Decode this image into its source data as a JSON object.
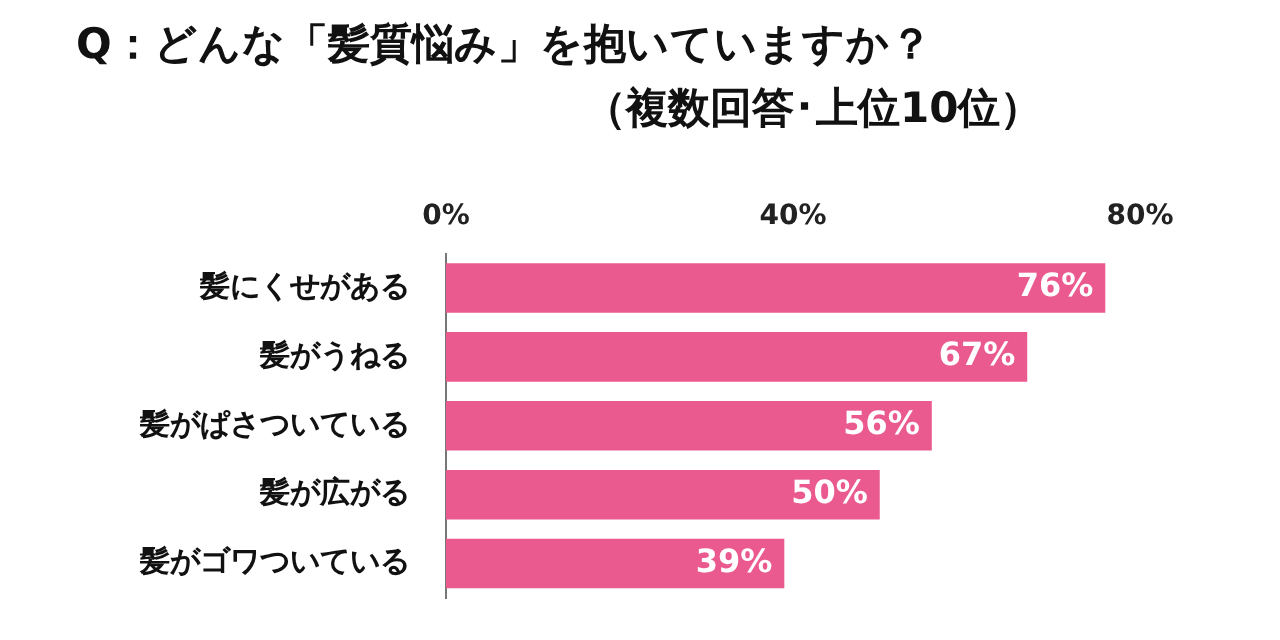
{
  "chart_data": {
    "type": "bar",
    "orientation": "horizontal",
    "title": "Q：どんな「髪質悩み」を抱いていますか？",
    "subtitle": "（複数回答･上位10位）",
    "categories": [
      "髪にくせがある",
      "髪がうねる",
      "髪がぱさついている",
      "髪が広がる",
      "髪がゴワついている"
    ],
    "values": [
      76,
      67,
      56,
      50,
      39
    ],
    "value_labels": [
      "76%",
      "67%",
      "56%",
      "50%",
      "39%"
    ],
    "color": "#ea5a8f",
    "xlim": [
      0,
      80
    ],
    "xticks": [
      {
        "value": 0,
        "label": "0%"
      },
      {
        "value": 40,
        "label": "40%"
      },
      {
        "value": 80,
        "label": "80%"
      }
    ],
    "grid": false,
    "legend": false
  }
}
